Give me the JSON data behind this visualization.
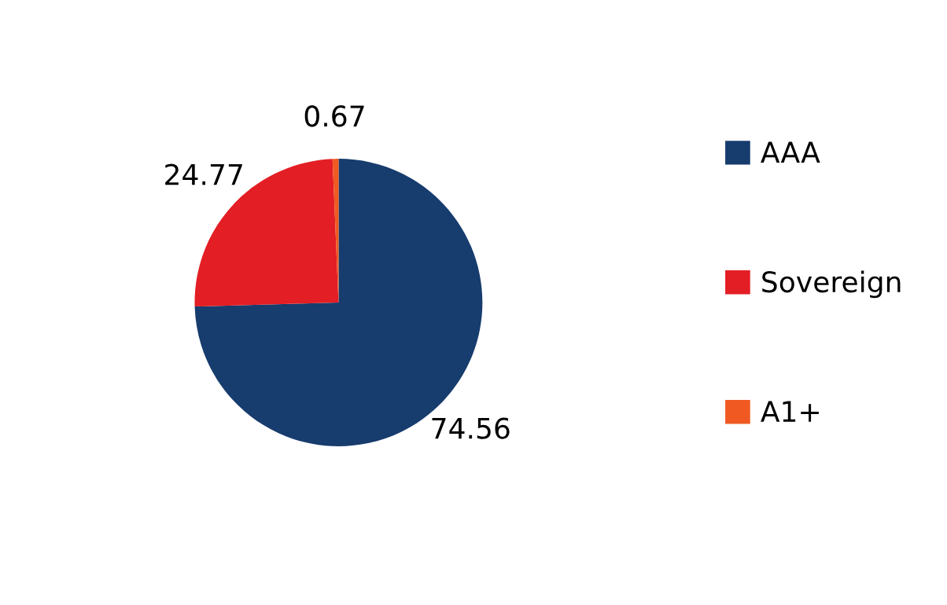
{
  "chart_data": {
    "type": "pie",
    "categories": [
      "AAA",
      "Sovereign",
      "A1+"
    ],
    "values": [
      74.56,
      24.77,
      0.67
    ],
    "colors": [
      "#173c6e",
      "#e31e24",
      "#f05a22"
    ],
    "data_labels": true,
    "legend": "right"
  }
}
